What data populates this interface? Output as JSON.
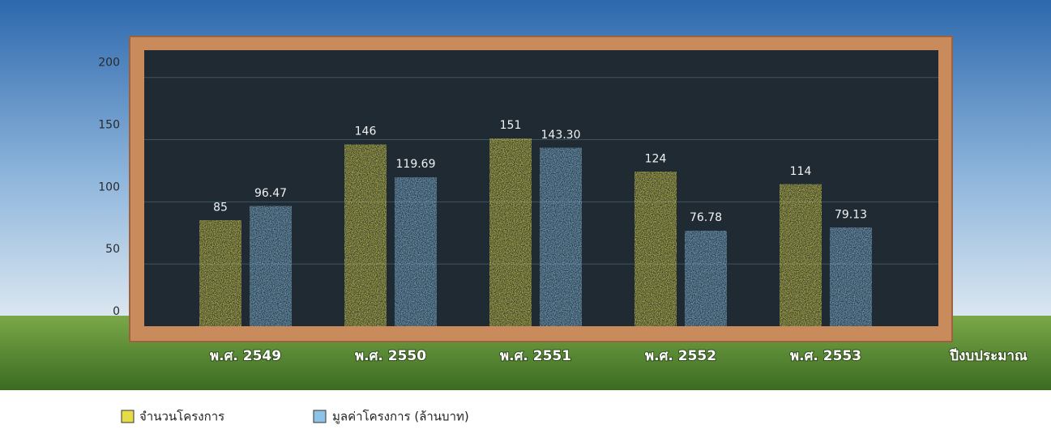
{
  "chart_data": {
    "type": "bar",
    "categories": [
      "พ.ศ. 2549",
      "พ.ศ. 2550",
      "พ.ศ. 2551",
      "พ.ศ. 2552",
      "พ.ศ. 2553"
    ],
    "x_label": "ปีงบประมาณ",
    "series": [
      {
        "name": "จำนวนโครงการ",
        "color": "#e6dc48",
        "values": [
          85,
          146,
          151,
          124,
          114
        ]
      },
      {
        "name": "มูลค่าโครงการ (ล้านบาท)",
        "color": "#8cc3e6",
        "values": [
          96.47,
          119.69,
          143.3,
          76.78,
          79.13
        ],
        "value_labels": [
          "96.47",
          "119.69",
          "143.30",
          "76.78",
          "79.13"
        ]
      }
    ],
    "ylim": [
      0,
      220
    ],
    "yticks": [
      0,
      50,
      100,
      150,
      200
    ],
    "grid": true
  }
}
